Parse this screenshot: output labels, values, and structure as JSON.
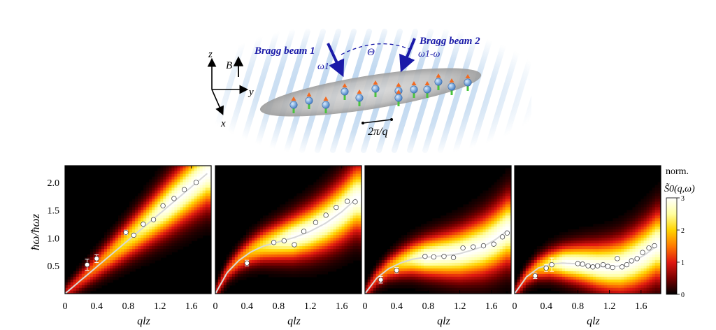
{
  "schematic": {
    "beam1_label": "Bragg beam 1",
    "beam2_label": "Bragg beam 2",
    "theta_label": "Θ",
    "omega1_label": "ω1",
    "omega1_minus_omega_label": "ω1-ω",
    "field_label": "B",
    "axis_z": "z",
    "axis_y": "y",
    "axis_x": "x",
    "wavelength_label": "2π/q",
    "colors": {
      "beam": "#1a1aa8",
      "spin_up": "#f26a21",
      "spin_down": "#49c43d",
      "atom": "#6f9fd8",
      "cloud": "#9a9a9a",
      "fringes": "#7fb0e0"
    }
  },
  "colorbar": {
    "title": "norm.",
    "subtitle": "S̃0(q,ω)",
    "ticks": [
      "0",
      "1",
      "2",
      "3"
    ],
    "vmin": 0,
    "vmax": 3,
    "colors": [
      "#000000",
      "#7a0000",
      "#e01810",
      "#ff7a00",
      "#ffd400",
      "#ffffa0",
      "#ffffff"
    ]
  },
  "chart_data": [
    {
      "type": "heatmap",
      "panel": 1,
      "ylabel": "ħω/ħωz",
      "xlabel": "qlz",
      "xlim": [
        0,
        1.85
      ],
      "ylim": [
        0,
        2.3
      ],
      "xticks": [
        "0",
        "0.4",
        "0.8",
        "1.2",
        "1.6"
      ],
      "yticks": [
        "0.5",
        "1.0",
        "1.5",
        "2.0"
      ],
      "theory_curve": {
        "x": [
          0,
          0.3,
          0.6,
          0.9,
          1.2,
          1.5,
          1.8
        ],
        "y": [
          0,
          0.36,
          0.72,
          1.08,
          1.44,
          1.8,
          2.16
        ]
      },
      "series": [
        {
          "x": [
            0.28,
            0.4,
            0.77,
            0.87,
            0.99,
            1.12,
            1.24,
            1.38,
            1.51,
            1.66
          ],
          "y": [
            0.52,
            0.63,
            1.1,
            1.05,
            1.25,
            1.33,
            1.58,
            1.71,
            1.87,
            2.0
          ],
          "yerr": [
            0.1,
            0.07,
            0.04,
            0.03,
            0.03,
            0.03,
            0.03,
            0.03,
            0.03,
            0.03
          ]
        }
      ]
    },
    {
      "type": "heatmap",
      "panel": 2,
      "xlabel": "qlz",
      "xlim": [
        0,
        1.85
      ],
      "ylim": [
        0,
        2.3
      ],
      "xticks": [
        "0",
        "0.4",
        "0.8",
        "1.2",
        "1.6"
      ],
      "theory_curve": {
        "x": [
          0,
          0.15,
          0.3,
          0.45,
          0.6,
          0.8,
          1.0,
          1.2,
          1.4,
          1.6,
          1.78
        ],
        "y": [
          0,
          0.38,
          0.6,
          0.75,
          0.85,
          0.93,
          1.01,
          1.12,
          1.27,
          1.47,
          1.7
        ]
      },
      "series": [
        {
          "x": [
            0.4,
            0.74,
            0.87,
            1.0,
            1.12,
            1.27,
            1.4,
            1.53,
            1.67,
            1.77
          ],
          "y": [
            0.55,
            0.92,
            0.95,
            0.88,
            1.12,
            1.28,
            1.41,
            1.55,
            1.66,
            1.65
          ],
          "yerr": [
            0.05,
            0.04,
            0.03,
            0.03,
            0.03,
            0.03,
            0.03,
            0.03,
            0.03,
            0.03
          ]
        }
      ]
    },
    {
      "type": "heatmap",
      "panel": 3,
      "xlabel": "qlz",
      "xlim": [
        0,
        1.85
      ],
      "ylim": [
        0,
        2.3
      ],
      "xticks": [
        "0",
        "0.4",
        "0.8",
        "1.2",
        "1.6"
      ],
      "theory_curve": {
        "x": [
          0,
          0.15,
          0.3,
          0.45,
          0.6,
          0.75,
          0.9,
          1.05,
          1.2,
          1.35,
          1.5,
          1.65,
          1.8
        ],
        "y": [
          0,
          0.28,
          0.45,
          0.55,
          0.62,
          0.65,
          0.67,
          0.69,
          0.72,
          0.78,
          0.85,
          0.97,
          1.13
        ]
      },
      "series": [
        {
          "x": [
            0.2,
            0.4,
            0.76,
            0.87,
            1.0,
            1.12,
            1.24,
            1.37,
            1.5,
            1.63,
            1.74,
            1.8
          ],
          "y": [
            0.25,
            0.42,
            0.67,
            0.66,
            0.67,
            0.65,
            0.82,
            0.84,
            0.86,
            0.89,
            1.02,
            1.09
          ],
          "yerr": [
            0.06,
            0.05,
            0.03,
            0.03,
            0.03,
            0.03,
            0.03,
            0.03,
            0.03,
            0.03,
            0.03,
            0.03
          ]
        }
      ]
    },
    {
      "type": "heatmap",
      "panel": 4,
      "xlabel": "qlz",
      "xlim": [
        0,
        1.85
      ],
      "ylim": [
        0,
        2.3
      ],
      "xticks": [
        "0",
        "0.4",
        "0.8",
        "1.2",
        "1.6"
      ],
      "theory_curve": {
        "x": [
          0,
          0.15,
          0.3,
          0.45,
          0.6,
          0.75,
          0.9,
          1.05,
          1.2,
          1.35,
          1.5,
          1.65,
          1.8
        ],
        "y": [
          0,
          0.3,
          0.46,
          0.53,
          0.55,
          0.54,
          0.52,
          0.49,
          0.48,
          0.5,
          0.58,
          0.7,
          0.86
        ]
      },
      "series": [
        {
          "x": [
            0.26,
            0.4,
            0.47,
            0.8,
            0.86,
            0.93,
            0.99,
            1.05,
            1.12,
            1.18,
            1.24,
            1.3,
            1.36,
            1.42,
            1.48,
            1.55,
            1.62,
            1.7,
            1.77
          ],
          "y": [
            0.32,
            0.46,
            0.52,
            0.54,
            0.53,
            0.5,
            0.48,
            0.5,
            0.52,
            0.49,
            0.47,
            0.63,
            0.48,
            0.52,
            0.59,
            0.63,
            0.74,
            0.82,
            0.86
          ],
          "yerr": [
            0.05,
            0.06,
            0.12,
            0.03,
            0.03,
            0.03,
            0.03,
            0.03,
            0.03,
            0.03,
            0.03,
            0.05,
            0.03,
            0.03,
            0.03,
            0.03,
            0.03,
            0.03,
            0.03
          ]
        }
      ]
    }
  ]
}
